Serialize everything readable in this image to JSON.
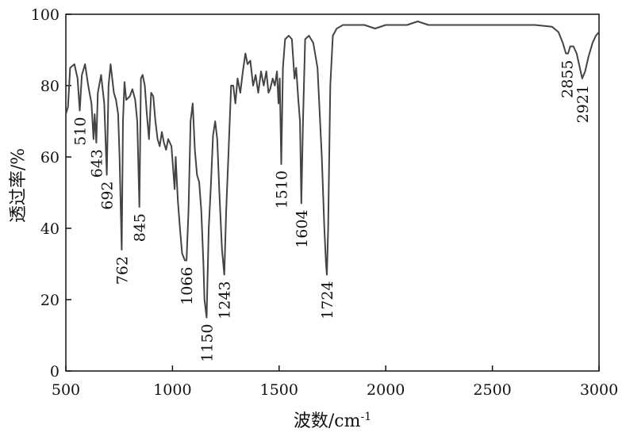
{
  "chart_data": {
    "type": "line",
    "xlabel": "波数/cm",
    "xlabel_sup": "-1",
    "ylabel": "透过率/%",
    "xlim": [
      500,
      3000
    ],
    "ylim": [
      0,
      100
    ],
    "x_ticks": [
      500,
      1000,
      1500,
      2000,
      2500,
      3000
    ],
    "y_ticks": [
      0,
      20,
      40,
      60,
      80,
      100
    ],
    "grid": false,
    "series": [
      {
        "color": "#444444",
        "points": [
          [
            500,
            72
          ],
          [
            510,
            74
          ],
          [
            520,
            85
          ],
          [
            540,
            86
          ],
          [
            555,
            82
          ],
          [
            565,
            73
          ],
          [
            575,
            83
          ],
          [
            590,
            86
          ],
          [
            605,
            80
          ],
          [
            620,
            75
          ],
          [
            630,
            65
          ],
          [
            635,
            72
          ],
          [
            643,
            64
          ],
          [
            650,
            78
          ],
          [
            665,
            83
          ],
          [
            680,
            75
          ],
          [
            692,
            55
          ],
          [
            700,
            80
          ],
          [
            710,
            86
          ],
          [
            725,
            78
          ],
          [
            735,
            76
          ],
          [
            745,
            72
          ],
          [
            752,
            60
          ],
          [
            762,
            34
          ],
          [
            768,
            70
          ],
          [
            775,
            81
          ],
          [
            783,
            76
          ],
          [
            800,
            77
          ],
          [
            812,
            79
          ],
          [
            825,
            76
          ],
          [
            835,
            70
          ],
          [
            845,
            46
          ],
          [
            852,
            82
          ],
          [
            860,
            83
          ],
          [
            870,
            80
          ],
          [
            880,
            72
          ],
          [
            890,
            65
          ],
          [
            900,
            78
          ],
          [
            910,
            77
          ],
          [
            920,
            70
          ],
          [
            930,
            65
          ],
          [
            940,
            63
          ],
          [
            950,
            67
          ],
          [
            960,
            64
          ],
          [
            970,
            62
          ],
          [
            980,
            65
          ],
          [
            995,
            63
          ],
          [
            1010,
            51
          ],
          [
            1015,
            60
          ],
          [
            1025,
            48
          ],
          [
            1035,
            40
          ],
          [
            1045,
            33
          ],
          [
            1058,
            31
          ],
          [
            1066,
            31
          ],
          [
            1075,
            45
          ],
          [
            1085,
            70
          ],
          [
            1095,
            75
          ],
          [
            1105,
            62
          ],
          [
            1115,
            55
          ],
          [
            1125,
            53
          ],
          [
            1135,
            45
          ],
          [
            1145,
            30
          ],
          [
            1150,
            20
          ],
          [
            1160,
            15
          ],
          [
            1170,
            40
          ],
          [
            1180,
            52
          ],
          [
            1190,
            66
          ],
          [
            1200,
            70
          ],
          [
            1210,
            65
          ],
          [
            1220,
            50
          ],
          [
            1232,
            34
          ],
          [
            1243,
            27
          ],
          [
            1252,
            45
          ],
          [
            1262,
            60
          ],
          [
            1275,
            80
          ],
          [
            1285,
            80
          ],
          [
            1295,
            75
          ],
          [
            1305,
            82
          ],
          [
            1318,
            78
          ],
          [
            1330,
            84
          ],
          [
            1342,
            89
          ],
          [
            1352,
            86
          ],
          [
            1365,
            87
          ],
          [
            1378,
            80
          ],
          [
            1390,
            83
          ],
          [
            1402,
            78
          ],
          [
            1415,
            84
          ],
          [
            1428,
            80
          ],
          [
            1440,
            84
          ],
          [
            1450,
            78
          ],
          [
            1458,
            79
          ],
          [
            1470,
            82
          ],
          [
            1480,
            80
          ],
          [
            1490,
            84
          ],
          [
            1497,
            75
          ],
          [
            1503,
            82
          ],
          [
            1510,
            58
          ],
          [
            1518,
            85
          ],
          [
            1528,
            93
          ],
          [
            1545,
            94
          ],
          [
            1560,
            93
          ],
          [
            1572,
            82
          ],
          [
            1580,
            85
          ],
          [
            1590,
            76
          ],
          [
            1598,
            70
          ],
          [
            1604,
            47
          ],
          [
            1612,
            70
          ],
          [
            1622,
            93
          ],
          [
            1640,
            94
          ],
          [
            1660,
            92
          ],
          [
            1680,
            85
          ],
          [
            1700,
            60
          ],
          [
            1712,
            40
          ],
          [
            1720,
            30
          ],
          [
            1724,
            27
          ],
          [
            1730,
            40
          ],
          [
            1740,
            80
          ],
          [
            1752,
            94
          ],
          [
            1770,
            96
          ],
          [
            1800,
            97
          ],
          [
            1900,
            97
          ],
          [
            1950,
            96
          ],
          [
            2000,
            97
          ],
          [
            2100,
            97
          ],
          [
            2150,
            98
          ],
          [
            2200,
            97
          ],
          [
            2300,
            97
          ],
          [
            2400,
            97
          ],
          [
            2500,
            97
          ],
          [
            2600,
            97
          ],
          [
            2700,
            97
          ],
          [
            2780,
            96.5
          ],
          [
            2810,
            95
          ],
          [
            2830,
            92
          ],
          [
            2845,
            89
          ],
          [
            2855,
            89
          ],
          [
            2865,
            91
          ],
          [
            2880,
            91
          ],
          [
            2895,
            89
          ],
          [
            2910,
            85
          ],
          [
            2921,
            82
          ],
          [
            2935,
            84
          ],
          [
            2950,
            88
          ],
          [
            2970,
            92
          ],
          [
            2985,
            94
          ],
          [
            3000,
            95
          ]
        ]
      }
    ],
    "annotations": [
      {
        "text": "510",
        "x": 565,
        "y": 73
      },
      {
        "text": "643",
        "x": 643,
        "y": 64
      },
      {
        "text": "692",
        "x": 692,
        "y": 55
      },
      {
        "text": "762",
        "x": 762,
        "y": 34
      },
      {
        "text": "845",
        "x": 845,
        "y": 46
      },
      {
        "text": "1066",
        "x": 1066,
        "y": 31
      },
      {
        "text": "1150",
        "x": 1160,
        "y": 15
      },
      {
        "text": "1243",
        "x": 1243,
        "y": 27
      },
      {
        "text": "1510",
        "x": 1510,
        "y": 58
      },
      {
        "text": "1604",
        "x": 1604,
        "y": 47
      },
      {
        "text": "1724",
        "x": 1724,
        "y": 27
      },
      {
        "text": "2855",
        "x": 2850,
        "y": 89
      },
      {
        "text": "2921",
        "x": 2921,
        "y": 82
      }
    ]
  }
}
